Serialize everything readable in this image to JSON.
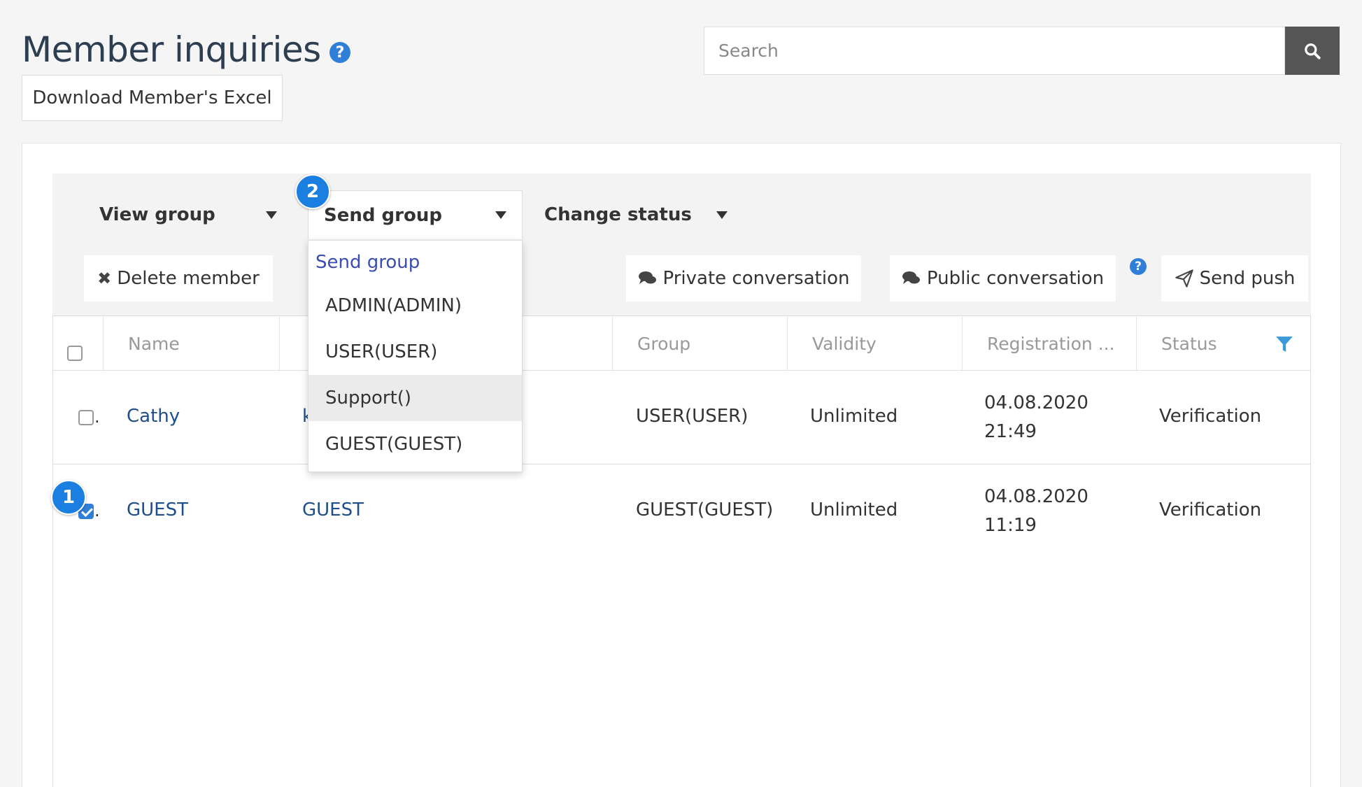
{
  "header": {
    "title": "Member inquiries",
    "help_glyph": "?",
    "download_label": "Download Member's Excel",
    "search_placeholder": "Search"
  },
  "toolbar": {
    "dropdowns": [
      "View group",
      "Send group",
      "Change status"
    ],
    "delete_label": "Delete member",
    "private_label": "Private conversation",
    "public_label": "Public conversation",
    "push_label": "Send push"
  },
  "send_group_menu": {
    "header": "Send group",
    "items": [
      "ADMIN(ADMIN)",
      "USER(USER)",
      "Support()",
      "GUEST(GUEST)"
    ],
    "highlighted": "Support()"
  },
  "table": {
    "headers": [
      "Name",
      "",
      "Group",
      "Validity",
      "Registration ...",
      "Status"
    ],
    "rows": [
      {
        "checked": false,
        "name": "Cathy",
        "second": "k",
        "group": "USER(USER)",
        "validity": "Unlimited",
        "reg_date": "04.08.2020",
        "reg_time": "21:49",
        "status": "Verification"
      },
      {
        "checked": true,
        "name": "GUEST",
        "second": "GUEST",
        "group": "GUEST(GUEST)",
        "validity": "Unlimited",
        "reg_date": "04.08.2020",
        "reg_time": "11:19",
        "status": "Verification"
      }
    ]
  },
  "badges": [
    "1",
    "2"
  ],
  "colors": {
    "accent": "#2f7ed8",
    "link": "#1f4e8c",
    "menu_header": "#3a4db5",
    "search_button": "#555555",
    "badge": "#1a7fe0"
  },
  "icons": [
    "help-icon",
    "search-icon",
    "close-icon",
    "chat-icon",
    "send-icon",
    "filter-icon",
    "caret-down-icon"
  ]
}
